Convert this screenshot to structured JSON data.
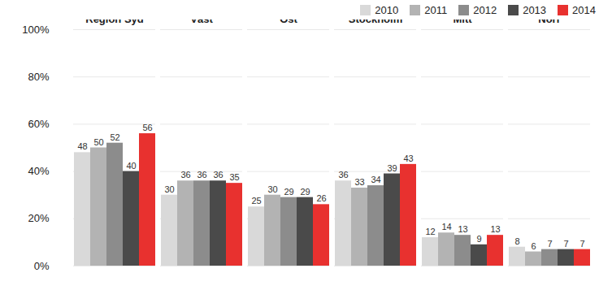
{
  "chart_data": {
    "type": "bar",
    "categories": [
      "Region Syd",
      "Väst",
      "Öst",
      "Stockholm",
      "Mitt",
      "Norr"
    ],
    "series": [
      {
        "name": "2010",
        "color": "#d9d9d9",
        "values": [
          48,
          30,
          25,
          36,
          12,
          8
        ]
      },
      {
        "name": "2011",
        "color": "#b3b3b3",
        "values": [
          50,
          36,
          30,
          33,
          14,
          6
        ]
      },
      {
        "name": "2012",
        "color": "#8c8c8c",
        "values": [
          52,
          36,
          29,
          34,
          13,
          7
        ]
      },
      {
        "name": "2013",
        "color": "#4a4a4a",
        "values": [
          40,
          36,
          29,
          39,
          9,
          7
        ]
      },
      {
        "name": "2014",
        "color": "#e8312f",
        "values": [
          56,
          35,
          26,
          43,
          13,
          7
        ]
      }
    ],
    "ylim": [
      0,
      100
    ],
    "yticks": [
      {
        "value": 0,
        "label": "0%"
      },
      {
        "value": 20,
        "label": "20%"
      },
      {
        "value": 40,
        "label": "40%"
      },
      {
        "value": 60,
        "label": "60%"
      },
      {
        "value": 80,
        "label": "80%"
      },
      {
        "value": 100,
        "label": "100%"
      }
    ],
    "grid": true,
    "legend": "top-right",
    "data_labels": true
  }
}
